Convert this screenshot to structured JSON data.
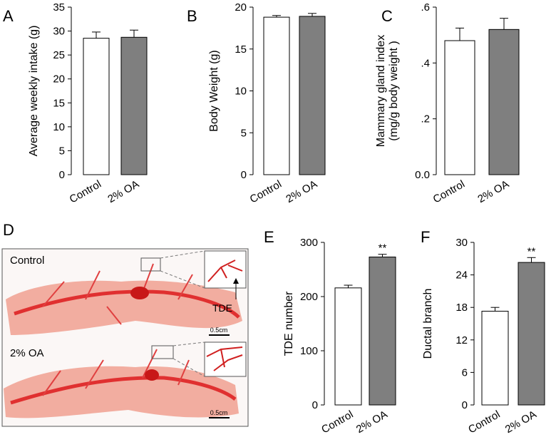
{
  "chart_data": [
    {
      "type": "bar",
      "panel": "A",
      "ylabel": [
        "Average weekly intake (g)"
      ],
      "categories": [
        "Control",
        "2% OA"
      ],
      "values": [
        28.5,
        28.7
      ],
      "errors": [
        1.3,
        1.5
      ],
      "colors": [
        "#ffffff",
        "#7f7f7f"
      ],
      "ylim": [
        0,
        35
      ],
      "yticks": [
        0,
        5,
        10,
        15,
        20,
        25,
        30,
        35
      ]
    },
    {
      "type": "bar",
      "panel": "B",
      "ylabel": [
        "Body Weight (g)"
      ],
      "categories": [
        "Control",
        "2% OA"
      ],
      "values": [
        18.8,
        18.9
      ],
      "errors": [
        0.2,
        0.35
      ],
      "colors": [
        "#ffffff",
        "#7f7f7f"
      ],
      "ylim": [
        0,
        20
      ],
      "yticks": [
        0,
        5,
        10,
        15,
        20
      ]
    },
    {
      "type": "bar",
      "panel": "C",
      "ylabel": [
        "Mammary gland  index",
        "(mg/g body weight )"
      ],
      "categories": [
        "Control",
        "2% OA"
      ],
      "values": [
        0.48,
        0.52
      ],
      "errors": [
        0.045,
        0.04
      ],
      "colors": [
        "#ffffff",
        "#7f7f7f"
      ],
      "ylim": [
        0,
        0.6
      ],
      "yticks": [
        {
          "value": 0,
          "label": "0.0"
        },
        {
          "value": 0.2,
          "label": ".2"
        },
        {
          "value": 0.4,
          "label": ".4"
        },
        {
          "value": 0.6,
          "label": ".6"
        }
      ]
    },
    {
      "type": "bar",
      "panel": "E",
      "ylabel": [
        "TDE number"
      ],
      "categories": [
        "Control",
        "2% OA"
      ],
      "values": [
        216,
        273
      ],
      "errors": [
        5,
        5
      ],
      "colors": [
        "#ffffff",
        "#7f7f7f"
      ],
      "ylim": [
        0,
        300
      ],
      "yticks": [
        0,
        100,
        200,
        300
      ],
      "value_annotations": [
        null,
        "**"
      ]
    },
    {
      "type": "bar",
      "panel": "F",
      "ylabel": [
        "Ductal branch"
      ],
      "categories": [
        "Control",
        "2% OA"
      ],
      "values": [
        17.3,
        26.3
      ],
      "errors": [
        0.7,
        0.9
      ],
      "colors": [
        "#ffffff",
        "#7f7f7f"
      ],
      "ylim": [
        0,
        30
      ],
      "yticks": [
        0,
        6,
        12,
        18,
        24,
        30
      ],
      "value_annotations": [
        null,
        "**"
      ]
    }
  ],
  "panel_d": {
    "panel": "D",
    "images": [
      {
        "label": "Control",
        "scale_bar": "0.5cm"
      },
      {
        "label": "2% OA",
        "scale_bar": "0.5cm"
      }
    ],
    "callout": "TDE"
  }
}
